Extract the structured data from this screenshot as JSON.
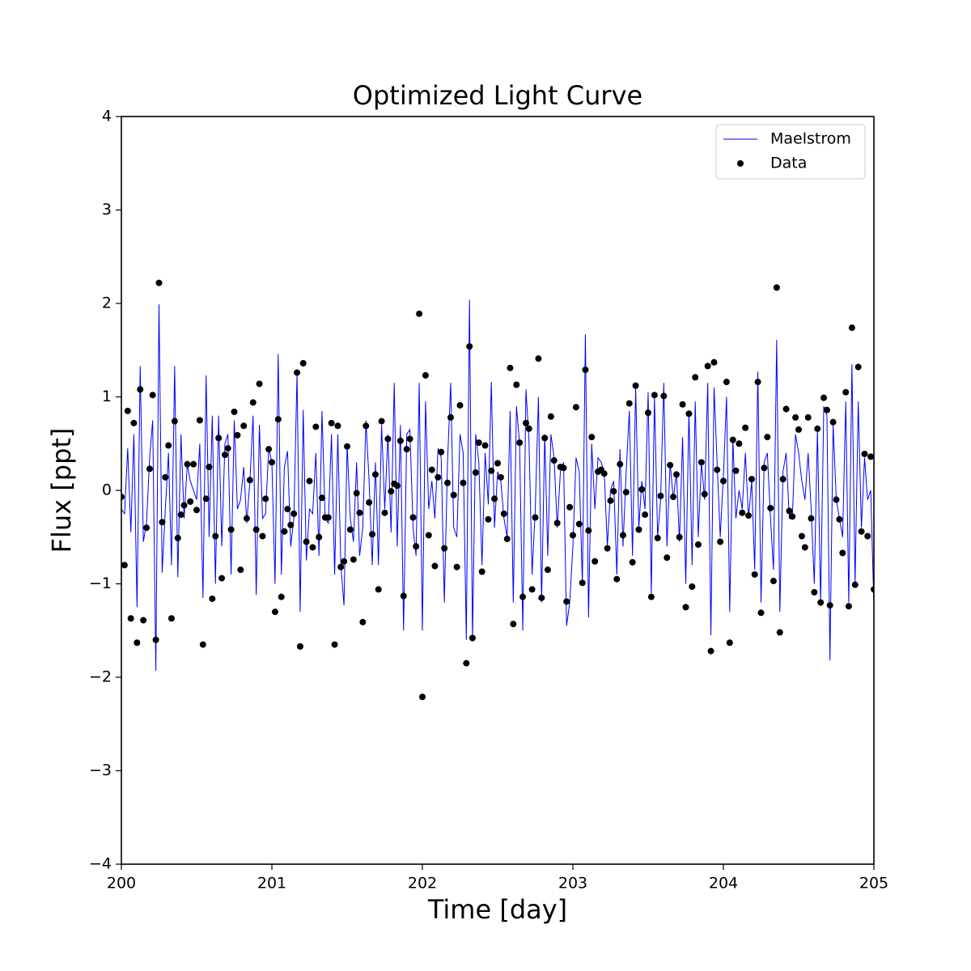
{
  "chart_data": {
    "type": "line",
    "title": "Optimized Light Curve",
    "x_label": "Time [day]",
    "y_label": "Flux [ppt]",
    "xlim": [
      200,
      205
    ],
    "ylim": [
      -4,
      4
    ],
    "xticks": [
      200,
      201,
      202,
      203,
      204,
      205
    ],
    "yticks": [
      {
        "value": -4,
        "label": "−4"
      },
      {
        "value": -3,
        "label": "−3"
      },
      {
        "value": -2,
        "label": "−2"
      },
      {
        "value": -1,
        "label": "−1"
      },
      0,
      1,
      2,
      3,
      4
    ],
    "grid": false,
    "legend": "upper right",
    "x": [
      200,
      200.021,
      200.042,
      200.063,
      200.083,
      200.104,
      200.125,
      200.146,
      200.167,
      200.188,
      200.208,
      200.229,
      200.25,
      200.271,
      200.292,
      200.313,
      200.333,
      200.354,
      200.375,
      200.396,
      200.417,
      200.438,
      200.458,
      200.479,
      200.5,
      200.521,
      200.542,
      200.563,
      200.583,
      200.604,
      200.625,
      200.646,
      200.667,
      200.688,
      200.708,
      200.729,
      200.75,
      200.771,
      200.792,
      200.813,
      200.833,
      200.854,
      200.875,
      200.896,
      200.917,
      200.938,
      200.958,
      200.979,
      201,
      201.021,
      201.042,
      201.063,
      201.083,
      201.104,
      201.125,
      201.146,
      201.167,
      201.188,
      201.208,
      201.229,
      201.25,
      201.271,
      201.292,
      201.313,
      201.333,
      201.354,
      201.375,
      201.396,
      201.417,
      201.438,
      201.458,
      201.479,
      201.5,
      201.521,
      201.542,
      201.563,
      201.583,
      201.604,
      201.625,
      201.646,
      201.667,
      201.688,
      201.708,
      201.729,
      201.75,
      201.771,
      201.792,
      201.813,
      201.833,
      201.854,
      201.875,
      201.896,
      201.917,
      201.938,
      201.958,
      201.979,
      202,
      202.021,
      202.042,
      202.063,
      202.083,
      202.104,
      202.125,
      202.146,
      202.167,
      202.188,
      202.208,
      202.229,
      202.25,
      202.271,
      202.292,
      202.313,
      202.333,
      202.354,
      202.375,
      202.396,
      202.417,
      202.438,
      202.458,
      202.479,
      202.5,
      202.521,
      202.542,
      202.563,
      202.583,
      202.604,
      202.625,
      202.646,
      202.667,
      202.688,
      202.708,
      202.729,
      202.75,
      202.771,
      202.792,
      202.813,
      202.833,
      202.854,
      202.875,
      202.896,
      202.917,
      202.938,
      202.958,
      202.979,
      203,
      203.021,
      203.042,
      203.063,
      203.083,
      203.104,
      203.125,
      203.146,
      203.167,
      203.188,
      203.208,
      203.229,
      203.25,
      203.271,
      203.292,
      203.313,
      203.333,
      203.354,
      203.375,
      203.396,
      203.417,
      203.438,
      203.458,
      203.479,
      203.5,
      203.521,
      203.542,
      203.563,
      203.583,
      203.604,
      203.625,
      203.646,
      203.667,
      203.688,
      203.708,
      203.729,
      203.75,
      203.771,
      203.792,
      203.813,
      203.833,
      203.854,
      203.875,
      203.896,
      203.917,
      203.938,
      203.958,
      203.979,
      204,
      204.021,
      204.042,
      204.063,
      204.083,
      204.104,
      204.125,
      204.146,
      204.167,
      204.188,
      204.208,
      204.229,
      204.25,
      204.271,
      204.292,
      204.313,
      204.333,
      204.354,
      204.375,
      204.396,
      204.417,
      204.438,
      204.458,
      204.479,
      204.5,
      204.521,
      204.542,
      204.563,
      204.583,
      204.604,
      204.625,
      204.646,
      204.667,
      204.688,
      204.708,
      204.729,
      204.75,
      204.771,
      204.792,
      204.813,
      204.833,
      204.854,
      204.875,
      204.896,
      204.917,
      204.938,
      204.958,
      204.979,
      205
    ],
    "series": [
      {
        "name": "Maelstrom",
        "color": "#0000ff",
        "kind": "line",
        "values": [
          -0.2,
          -0.25,
          0.45,
          -0.45,
          0.6,
          -1.25,
          1.33,
          -0.55,
          -0.35,
          0.35,
          0.75,
          -1.93,
          1.99,
          -0.88,
          -0.2,
          0.4,
          -0.8,
          1.33,
          -0.93,
          0.6,
          -0.3,
          0.28,
          0.1,
          0.0,
          -0.1,
          0.5,
          -1.15,
          1.23,
          -0.5,
          0.8,
          -1.0,
          0.8,
          -0.6,
          0.5,
          0.6,
          -0.9,
          0.75,
          -0.2,
          -0.1,
          0.25,
          -0.35,
          0.1,
          0.8,
          -1.12,
          0.7,
          -0.3,
          -0.25,
          0.45,
          0.3,
          -1.0,
          1.46,
          -0.9,
          0.25,
          0.42,
          -0.6,
          -0.3,
          1.25,
          -1.3,
          0.86,
          -0.75,
          -0.2,
          -0.25,
          0.4,
          -0.7,
          0.85,
          -0.3,
          -0.35,
          0.6,
          -0.9,
          0.6,
          -0.8,
          -1.23,
          0.5,
          -0.3,
          -0.55,
          0.3,
          -0.7,
          -0.4,
          0.75,
          0.1,
          -0.8,
          0.3,
          -0.8,
          0.7,
          -0.2,
          0.6,
          -0.45,
          1.15,
          -0.6,
          0.7,
          -1.5,
          0.6,
          0.65,
          -0.4,
          -0.7,
          1.15,
          -1.5,
          0.95,
          -0.2,
          0.1,
          -0.3,
          0.45,
          0.35,
          -1.2,
          0.3,
          1.15,
          -0.4,
          -0.5,
          0.6,
          0.4,
          -1.6,
          2.04,
          -1.6,
          0.6,
          0.3,
          -0.8,
          0.4,
          -0.15,
          1.16,
          -0.4,
          0.2,
          0.1,
          -0.3,
          -0.5,
          0.85,
          -1.2,
          0.9,
          0.5,
          -1.5,
          1.08,
          0.55,
          -0.9,
          -0.2,
          1.0,
          -1.2,
          0.6,
          -0.7,
          0.6,
          0.35,
          -0.4,
          0.2,
          0.3,
          -1.45,
          -1.2,
          -0.6,
          0.35,
          0.2,
          -1.0,
          1.67,
          -1.36,
          0.5,
          -0.2,
          0.35,
          0.3,
          0.2,
          -0.6,
          0.0,
          0.1,
          -0.9,
          0.44,
          -0.6,
          0.2,
          0.85,
          -0.7,
          1.1,
          -0.4,
          0.1,
          -0.2,
          1.05,
          -1.1,
          1.0,
          -0.5,
          -0.1,
          1.15,
          -0.6,
          0.3,
          -0.1,
          0.2,
          -0.55,
          0.57,
          -1.0,
          0.85,
          -0.8,
          0.95,
          -0.5,
          0.3,
          -0.1,
          1.15,
          -1.55,
          1.1,
          0.3,
          -0.5,
          0.15,
          1.0,
          -1.3,
          0.55,
          -0.3,
          0.0,
          -0.2,
          0.4,
          -0.3,
          0.1,
          -0.85,
          1.27,
          -1.2,
          0.3,
          0.4,
          -0.3,
          -0.85,
          1.61,
          -1.3,
          0.2,
          0.4,
          -0.3,
          -0.3,
          0.6,
          0.4,
          0.1,
          -0.1,
          0.4,
          -0.2,
          -1.0,
          0.65,
          -1.2,
          0.9,
          0.8,
          -1.82,
          0.7,
          -0.1,
          -0.3,
          -0.5,
          0.95,
          -1.2,
          1.35,
          -1.0,
          0.95,
          -0.4,
          0.35,
          -0.1,
          0.0,
          -1.24
        ]
      },
      {
        "name": "Data",
        "color": "#000000",
        "kind": "scatter",
        "values": [
          -0.07,
          -0.8,
          0.85,
          -1.37,
          0.72,
          -1.63,
          1.08,
          -1.39,
          -0.4,
          0.23,
          1.02,
          -1.6,
          2.22,
          -0.34,
          0.14,
          0.48,
          -1.37,
          0.74,
          -0.51,
          -0.26,
          -0.16,
          0.28,
          -0.12,
          0.28,
          -0.21,
          0.75,
          -1.65,
          -0.09,
          0.25,
          -1.16,
          -0.49,
          0.56,
          -0.94,
          0.38,
          0.45,
          -0.42,
          0.84,
          0.59,
          -0.85,
          0.69,
          -0.3,
          0.11,
          0.94,
          -0.42,
          1.14,
          -0.49,
          -0.09,
          0.44,
          0.3,
          -1.3,
          0.76,
          -1.14,
          -0.44,
          -0.2,
          -0.37,
          -0.25,
          1.26,
          -1.67,
          1.36,
          -0.55,
          0.1,
          -0.61,
          0.68,
          -0.5,
          -0.08,
          -0.29,
          -0.29,
          0.72,
          -1.65,
          0.69,
          -0.82,
          -0.76,
          0.47,
          -0.42,
          -0.74,
          -0.03,
          -0.24,
          -1.41,
          0.69,
          -0.13,
          -0.47,
          0.17,
          -1.06,
          0.74,
          -0.24,
          0.55,
          -0.01,
          0.07,
          0.05,
          0.53,
          -1.13,
          0.44,
          0.55,
          -0.29,
          -0.6,
          1.89,
          -2.21,
          1.23,
          -0.48,
          0.22,
          -0.81,
          0.14,
          0.41,
          -0.62,
          0.08,
          0.78,
          -0.05,
          -0.82,
          0.91,
          0.08,
          -1.85,
          1.54,
          -1.58,
          0.19,
          0.51,
          -0.87,
          0.48,
          -0.31,
          0.21,
          -0.09,
          0.29,
          0.14,
          -0.25,
          -0.52,
          1.31,
          -1.43,
          1.13,
          0.51,
          -1.14,
          0.72,
          0.66,
          -1.06,
          -0.29,
          1.41,
          -1.15,
          0.56,
          -0.85,
          0.79,
          0.32,
          -0.35,
          0.25,
          0.24,
          -1.19,
          -0.18,
          -0.48,
          0.89,
          -0.36,
          -0.99,
          1.29,
          -0.43,
          0.57,
          -0.76,
          0.2,
          0.22,
          0.18,
          -0.62,
          -0.11,
          -0.01,
          -0.95,
          0.28,
          -0.48,
          -0.02,
          0.93,
          -0.77,
          1.12,
          -0.42,
          0.01,
          -0.26,
          0.83,
          -1.14,
          1.02,
          -0.51,
          -0.06,
          1.01,
          -0.72,
          0.27,
          -0.07,
          0.17,
          -0.5,
          0.92,
          -1.25,
          0.82,
          -1.03,
          1.21,
          -0.58,
          0.3,
          -0.04,
          1.33,
          -1.72,
          1.37,
          0.22,
          -0.55,
          0.1,
          1.16,
          -1.63,
          0.54,
          0.21,
          0.5,
          -0.24,
          0.67,
          -0.27,
          0.12,
          -0.9,
          1.16,
          -1.31,
          0.24,
          0.57,
          -0.19,
          -0.97,
          2.17,
          -1.52,
          0.12,
          0.87,
          -0.22,
          -0.28,
          0.78,
          0.65,
          -0.49,
          -0.61,
          0.78,
          -0.3,
          -1.09,
          0.66,
          -1.2,
          0.99,
          0.86,
          -1.23,
          0.73,
          -0.1,
          -0.31,
          -0.67,
          1.05,
          -1.24,
          1.74,
          -1.01,
          1.32,
          -0.44,
          0.39,
          -0.49,
          0.36,
          -1.06
        ]
      }
    ]
  }
}
